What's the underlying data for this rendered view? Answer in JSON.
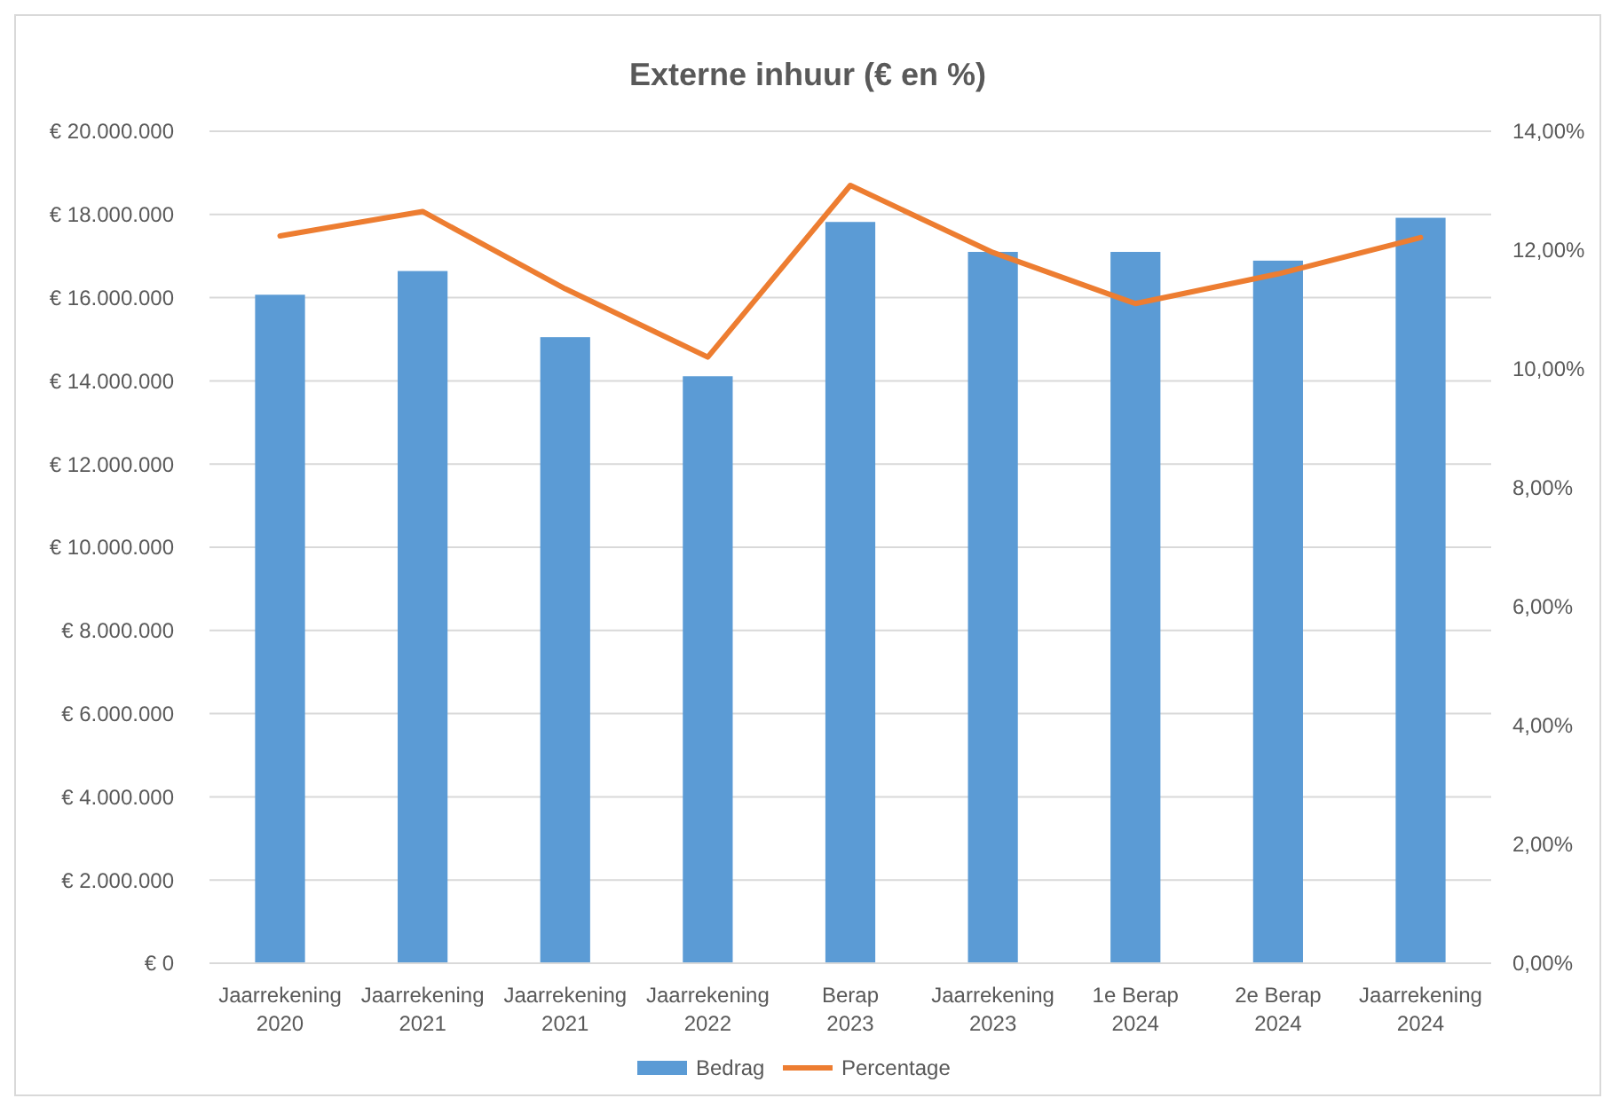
{
  "chart_data": {
    "type": "bar",
    "title": "Externe inhuur (€ en %)",
    "categories": [
      "Jaarrekening 2020",
      "Jaarrekening 2021",
      "Jaarrekening 2021",
      "Jaarrekening 2022",
      "Berap 2023",
      "Jaarrekening 2023",
      "1e Berap 2024",
      "2e Berap 2024",
      "Jaarrekening 2024"
    ],
    "series": [
      {
        "name": "Bedrag",
        "color": "#5b9bd5",
        "values": [
          16070000,
          16640000,
          15050000,
          14110000,
          17820000,
          17100000,
          17100000,
          16890000,
          17920000
        ]
      },
      {
        "name": "Percentage",
        "type": "line",
        "axis": "y2",
        "color": "#ed7d31",
        "values": [
          12.24,
          12.65,
          11.35,
          10.2,
          13.09,
          11.96,
          11.1,
          11.6,
          12.21
        ]
      }
    ],
    "ylim": [
      0,
      20000000
    ],
    "yticks": [
      {
        "value": 0,
        "label": "€ 0"
      },
      {
        "value": 2000000,
        "label": "€ 2.000.000"
      },
      {
        "value": 4000000,
        "label": "€ 4.000.000"
      },
      {
        "value": 6000000,
        "label": "€ 6.000.000"
      },
      {
        "value": 8000000,
        "label": "€ 8.000.000"
      },
      {
        "value": 10000000,
        "label": "€ 10.000.000"
      },
      {
        "value": 12000000,
        "label": "€ 12.000.000"
      },
      {
        "value": 14000000,
        "label": "€ 14.000.000"
      },
      {
        "value": 16000000,
        "label": "€ 16.000.000"
      },
      {
        "value": 18000000,
        "label": "€ 18.000.000"
      },
      {
        "value": 20000000,
        "label": "€ 20.000.000"
      }
    ],
    "y2lim": [
      0,
      14
    ],
    "y2ticks": [
      {
        "value": 0,
        "label": "0,00%"
      },
      {
        "value": 2,
        "label": "2,00%"
      },
      {
        "value": 4,
        "label": "4,00%"
      },
      {
        "value": 6,
        "label": "6,00%"
      },
      {
        "value": 8,
        "label": "8,00%"
      },
      {
        "value": 10,
        "label": "10,00%"
      },
      {
        "value": 12,
        "label": "12,00%"
      },
      {
        "value": 14,
        "label": "14,00%"
      }
    ],
    "grid": "y",
    "legend": "bottom",
    "line_style": "solid",
    "marker": "none"
  }
}
